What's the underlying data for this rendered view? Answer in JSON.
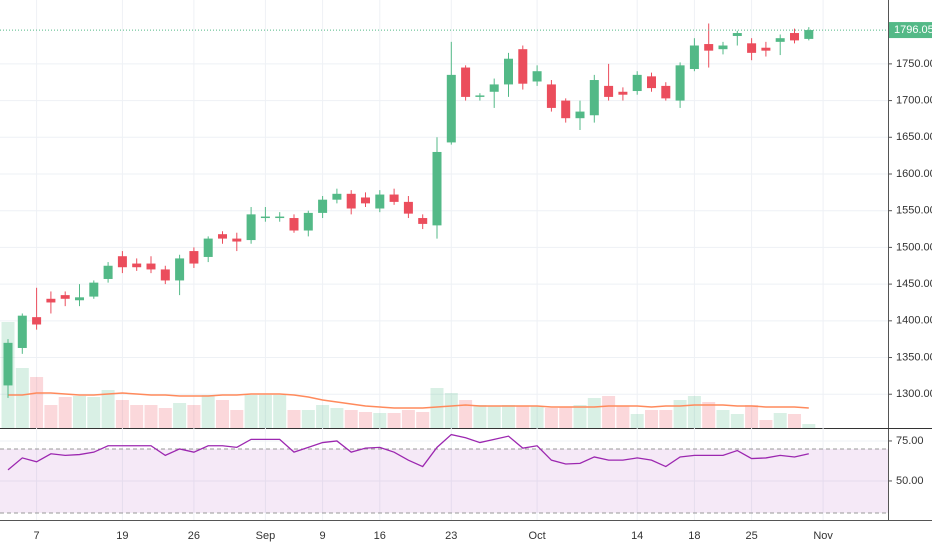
{
  "chart_data": {
    "type": "candlestick",
    "categories": [
      null,
      null,
      "7",
      null,
      null,
      null,
      null,
      null,
      "19",
      null,
      null,
      null,
      null,
      "26",
      null,
      null,
      null,
      null,
      "Sep",
      null,
      null,
      null,
      "9",
      null,
      null,
      null,
      "16",
      null,
      null,
      null,
      null,
      "23",
      null,
      null,
      null,
      null,
      null,
      "Oct",
      null,
      null,
      null,
      null,
      null,
      null,
      "14",
      null,
      null,
      null,
      "18",
      null,
      null,
      null,
      "25",
      null,
      null,
      null,
      null,
      "Nov"
    ],
    "open": [
      1312,
      1363,
      1405,
      1430,
      1435,
      1428,
      1433,
      1457,
      1488,
      1478,
      1478,
      1470,
      1455,
      1495,
      1487,
      1518,
      1512,
      1510,
      1540,
      1540,
      1540,
      1523,
      1547,
      1565,
      1573,
      1568,
      1553,
      1572,
      1562,
      1540,
      1530,
      1643,
      1745,
      1705,
      1712,
      1722,
      1770,
      1726,
      1722,
      1700,
      1676,
      1680,
      1720,
      1712,
      1713,
      1733,
      1720,
      1700,
      1743,
      1777,
      1770,
      1788,
      1778,
      1772,
      1780,
      1792,
      1784,
      null
    ],
    "high": [
      1375,
      1410,
      1445,
      1440,
      1440,
      1450,
      1455,
      1480,
      1495,
      1485,
      1488,
      1475,
      1490,
      1500,
      1515,
      1522,
      1520,
      1555,
      1555,
      1548,
      1545,
      1550,
      1570,
      1580,
      1578,
      1575,
      1578,
      1580,
      1570,
      1545,
      1650,
      1780,
      1748,
      1710,
      1730,
      1765,
      1775,
      1748,
      1728,
      1703,
      1700,
      1735,
      1750,
      1718,
      1740,
      1738,
      1725,
      1752,
      1785,
      1805,
      1780,
      1795,
      1785,
      1780,
      1790,
      1798,
      1800,
      null
    ],
    "low": [
      1295,
      1355,
      1388,
      1410,
      1420,
      1420,
      1430,
      1452,
      1465,
      1468,
      1465,
      1450,
      1435,
      1472,
      1480,
      1505,
      1495,
      1505,
      1535,
      1535,
      1520,
      1515,
      1540,
      1560,
      1545,
      1555,
      1548,
      1558,
      1540,
      1525,
      1512,
      1640,
      1700,
      1700,
      1690,
      1705,
      1715,
      1720,
      1685,
      1670,
      1660,
      1670,
      1700,
      1700,
      1708,
      1712,
      1700,
      1690,
      1740,
      1745,
      1763,
      1775,
      1755,
      1760,
      1762,
      1778,
      1782,
      null
    ],
    "close": [
      1370,
      1407,
      1395,
      1425,
      1430,
      1432,
      1452,
      1475,
      1473,
      1473,
      1470,
      1455,
      1485,
      1478,
      1512,
      1512,
      1508,
      1545,
      1542,
      1542,
      1523,
      1547,
      1565,
      1573,
      1553,
      1560,
      1572,
      1562,
      1546,
      1532,
      1630,
      1735,
      1705,
      1707,
      1722,
      1757,
      1723,
      1740,
      1690,
      1676,
      1685,
      1728,
      1705,
      1708,
      1735,
      1717,
      1703,
      1748,
      1775,
      1768,
      1775,
      1792,
      1765,
      1768,
      1785,
      1782,
      1796.05,
      null
    ],
    "volume": [
      106,
      60,
      51,
      23,
      31,
      32,
      31,
      38,
      28,
      23,
      23,
      20,
      25,
      23,
      33,
      28,
      18,
      33,
      33,
      33,
      18,
      18,
      23,
      20,
      18,
      16,
      15,
      15,
      18,
      16,
      40,
      35,
      28,
      23,
      22,
      23,
      22,
      22,
      20,
      21,
      23,
      30,
      32,
      22,
      14,
      18,
      18,
      28,
      32,
      26,
      18,
      14,
      23,
      8,
      15,
      14,
      4,
      null
    ],
    "volume_ma": [
      33,
      33,
      35,
      35,
      34,
      33,
      33,
      34,
      35,
      34,
      33,
      33,
      32,
      32,
      32,
      33,
      33,
      34,
      34,
      34,
      33,
      31,
      28,
      26,
      24,
      22,
      21,
      20,
      20,
      20,
      21,
      22,
      23,
      22,
      22,
      22,
      22,
      22,
      21,
      21,
      21,
      21,
      22,
      22,
      22,
      21,
      22,
      22,
      23,
      23,
      23,
      22,
      22,
      21,
      21,
      21,
      20,
      null
    ],
    "volume_lim": [
      0,
      120
    ],
    "ylim": [
      1254,
      1837
    ],
    "yticks": [
      {
        "value": 1300,
        "label": "1300.00"
      },
      {
        "value": 1350,
        "label": "1350.00"
      },
      {
        "value": 1400,
        "label": "1400.00"
      },
      {
        "value": 1450,
        "label": "1450.00"
      },
      {
        "value": 1500,
        "label": "1500.00"
      },
      {
        "value": 1550,
        "label": "1550.00"
      },
      {
        "value": 1600,
        "label": "1600.00"
      },
      {
        "value": 1650,
        "label": "1650.00"
      },
      {
        "value": 1700,
        "label": "1700.00"
      },
      {
        "value": 1750,
        "label": "1750.00"
      }
    ],
    "up_color": "#53b987",
    "down_color": "#eb4d5c",
    "volume_ma_color": "#ff8a5c",
    "grid": true,
    "rsi": {
      "color": "#9c27b0",
      "values": [
        56.9,
        64.4,
        62,
        67,
        66,
        66.5,
        68,
        72,
        72,
        72,
        72,
        66,
        70,
        68,
        72,
        72,
        71,
        76,
        76,
        76,
        68,
        71,
        74,
        75,
        68,
        70.5,
        71,
        68,
        63,
        59,
        71,
        79,
        77,
        74,
        76,
        78,
        70.5,
        72,
        63,
        60.6,
        61,
        65,
        63,
        63,
        64.4,
        63,
        59,
        65,
        66,
        66,
        66,
        69,
        64,
        64.4,
        66,
        65,
        67,
        null
      ],
      "ylim": [
        25.6,
        83.1
      ],
      "yticks": [
        {
          "value": 50,
          "label": "50.00"
        },
        {
          "value": 75,
          "label": "75.00"
        }
      ],
      "bands": [
        70,
        30
      ]
    }
  }
}
